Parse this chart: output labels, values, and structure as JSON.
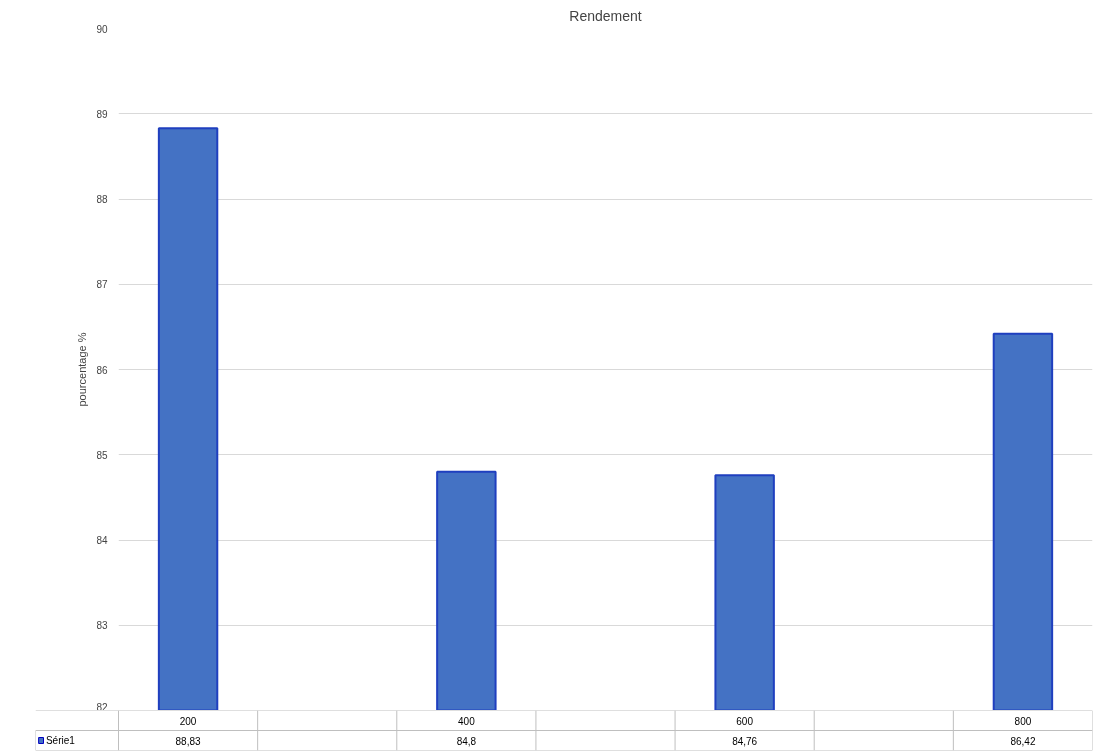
{
  "chart_data": {
    "type": "bar",
    "title": "Rendement",
    "ylabel": "pourcentage %",
    "categories": [
      "200",
      null,
      "400",
      null,
      "600",
      null,
      "800"
    ],
    "series": [
      {
        "name": "Série1",
        "color": "#4472c4",
        "values": [
          88.83,
          null,
          84.8,
          null,
          84.76,
          null,
          86.42
        ],
        "value_labels": [
          "88,83",
          null,
          "84,8",
          null,
          "84,76",
          null,
          "86,42"
        ]
      }
    ],
    "ylim": [
      82,
      90
    ],
    "yticks": [
      82,
      83,
      84,
      85,
      86,
      87,
      88,
      89,
      90
    ],
    "grid": "y",
    "legend": "bottom"
  }
}
